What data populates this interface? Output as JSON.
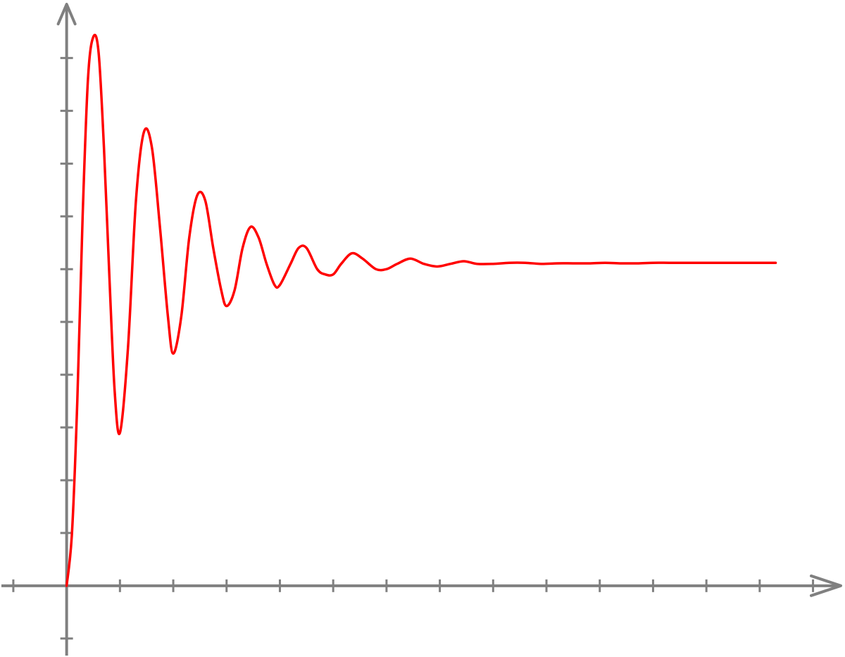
{
  "chart_data": {
    "type": "line",
    "title": "",
    "xlabel": "",
    "ylabel": "",
    "grid": false,
    "legend": "none",
    "xlim": [
      -1.25,
      14.6
    ],
    "ylim": [
      -1.35,
      11.1
    ],
    "x_ticks": [
      -1,
      1,
      2,
      3,
      4,
      5,
      6,
      7,
      8,
      9,
      10,
      11,
      12,
      13,
      14
    ],
    "y_ticks": [
      -1,
      1,
      2,
      3,
      4,
      5,
      6,
      7,
      8,
      9,
      10
    ],
    "series": [
      {
        "color": "#ff0000",
        "points": [
          [
            0.0,
            0.0
          ],
          [
            0.1,
            1.0
          ],
          [
            0.2,
            3.5
          ],
          [
            0.3,
            7.0
          ],
          [
            0.4,
            9.6
          ],
          [
            0.5,
            10.4
          ],
          [
            0.6,
            10.1
          ],
          [
            0.7,
            8.3
          ],
          [
            0.8,
            5.9
          ],
          [
            0.9,
            3.7
          ],
          [
            1.0,
            2.9
          ],
          [
            1.15,
            4.5
          ],
          [
            1.3,
            7.3
          ],
          [
            1.45,
            8.6
          ],
          [
            1.6,
            8.3
          ],
          [
            1.75,
            6.8
          ],
          [
            1.9,
            5.1
          ],
          [
            2.0,
            4.4
          ],
          [
            2.15,
            5.1
          ],
          [
            2.3,
            6.6
          ],
          [
            2.45,
            7.4
          ],
          [
            2.6,
            7.3
          ],
          [
            2.75,
            6.4
          ],
          [
            2.9,
            5.6
          ],
          [
            3.0,
            5.3
          ],
          [
            3.15,
            5.6
          ],
          [
            3.3,
            6.4
          ],
          [
            3.45,
            6.8
          ],
          [
            3.6,
            6.6
          ],
          [
            3.75,
            6.1
          ],
          [
            3.9,
            5.7
          ],
          [
            4.0,
            5.7
          ],
          [
            4.2,
            6.1
          ],
          [
            4.35,
            6.4
          ],
          [
            4.5,
            6.4
          ],
          [
            4.7,
            6.0
          ],
          [
            4.85,
            5.9
          ],
          [
            5.0,
            5.9
          ],
          [
            5.15,
            6.1
          ],
          [
            5.35,
            6.3
          ],
          [
            5.55,
            6.2
          ],
          [
            5.8,
            6.0
          ],
          [
            6.0,
            6.0
          ],
          [
            6.2,
            6.1
          ],
          [
            6.45,
            6.2
          ],
          [
            6.7,
            6.1
          ],
          [
            6.95,
            6.05
          ],
          [
            7.2,
            6.1
          ],
          [
            7.45,
            6.15
          ],
          [
            7.7,
            6.1
          ],
          [
            8.0,
            6.1
          ],
          [
            8.3,
            6.12
          ],
          [
            8.6,
            6.12
          ],
          [
            8.9,
            6.1
          ],
          [
            9.2,
            6.11
          ],
          [
            9.5,
            6.11
          ],
          [
            9.8,
            6.11
          ],
          [
            10.1,
            6.12
          ],
          [
            10.4,
            6.11
          ],
          [
            10.7,
            6.11
          ],
          [
            11.0,
            6.12
          ],
          [
            11.3,
            6.12
          ],
          [
            11.6,
            6.12
          ],
          [
            11.9,
            6.12
          ],
          [
            12.2,
            6.12
          ],
          [
            12.5,
            6.12
          ],
          [
            12.8,
            6.12
          ],
          [
            13.3,
            6.12
          ]
        ]
      }
    ]
  }
}
